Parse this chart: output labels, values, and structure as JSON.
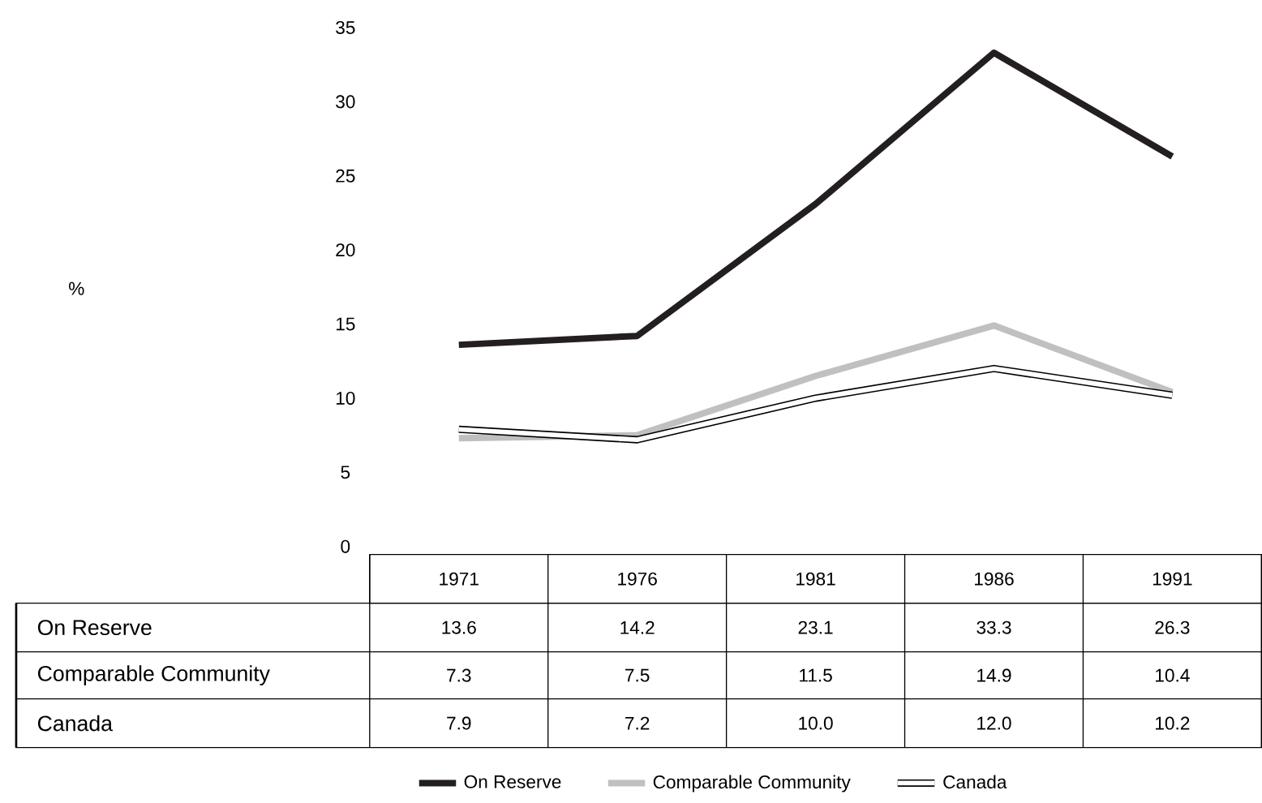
{
  "chart_data": {
    "type": "line",
    "annotations": [
      "%"
    ],
    "categories": [
      "1971",
      "1976",
      "1981",
      "1986",
      "1991"
    ],
    "series": [
      {
        "name": "On Reserve",
        "color": "#231f20",
        "values": [
          13.6,
          14.2,
          23.1,
          33.3,
          26.3
        ],
        "value_labels": [
          "13.6",
          "14.2",
          "23.1",
          "33.3",
          "26.3"
        ]
      },
      {
        "name": "Comparable Community",
        "color": "#c0c0c0",
        "values": [
          7.3,
          7.5,
          11.5,
          14.9,
          10.4
        ],
        "value_labels": [
          "7.3",
          "7.5",
          "11.5",
          "14.9",
          "10.4"
        ]
      },
      {
        "name": "Canada",
        "color": "#ffffff",
        "values": [
          7.9,
          7.2,
          10.0,
          12.0,
          10.2
        ],
        "value_labels": [
          "7.9",
          "7.2",
          "10.0",
          "12.0",
          "10.2"
        ]
      }
    ],
    "ylim": [
      0,
      35
    ],
    "yticks": [
      0,
      5,
      10,
      15,
      20,
      25,
      30,
      35
    ],
    "legend": "bottom",
    "grid": false
  }
}
